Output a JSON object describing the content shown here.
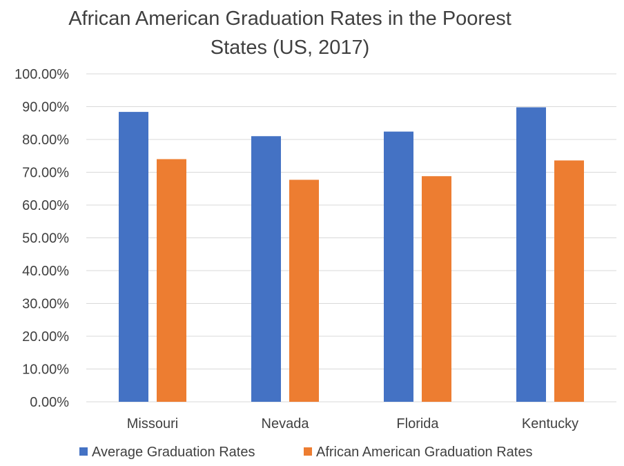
{
  "chart_data": {
    "type": "bar",
    "title": "African American Graduation Rates in the Poorest States (US, 2017)",
    "xlabel": "",
    "ylabel": "",
    "categories": [
      "Missouri",
      "Nevada",
      "Florida",
      "Kentucky"
    ],
    "series": [
      {
        "name": "Average Graduation Rates",
        "values": [
          0.884,
          0.81,
          0.824,
          0.898
        ],
        "color": "#4472C4"
      },
      {
        "name": "African American Graduation Rates",
        "values": [
          0.74,
          0.677,
          0.688,
          0.736
        ],
        "color": "#ED7D31"
      }
    ],
    "ylim": [
      0,
      1
    ],
    "yticks": [
      "0.00%",
      "10.00%",
      "20.00%",
      "30.00%",
      "40.00%",
      "50.00%",
      "60.00%",
      "70.00%",
      "80.00%",
      "90.00%",
      "100.00%"
    ],
    "grid": true,
    "legend_position": "bottom"
  }
}
